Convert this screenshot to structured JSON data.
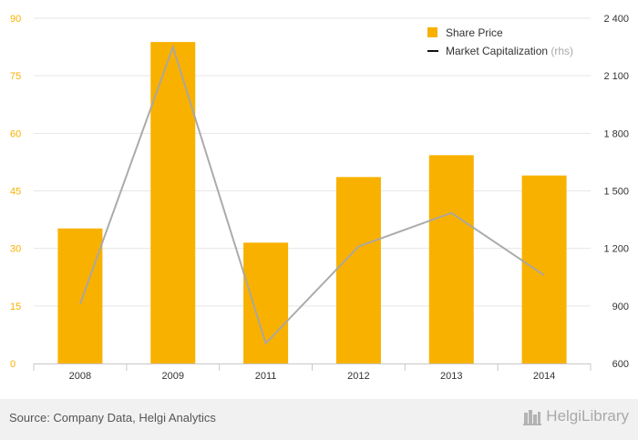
{
  "chart_data": {
    "type": "bar",
    "categories": [
      "2008",
      "2009",
      "2011",
      "2012",
      "2013",
      "2014"
    ],
    "series": [
      {
        "name": "Share Price",
        "type": "bar",
        "axis": "left",
        "color": "#f9b100",
        "values": [
          35.2,
          83.8,
          31.5,
          48.6,
          54.3,
          49.0
        ]
      },
      {
        "name": "Market Capitalization",
        "legend_suffix": "(rhs)",
        "type": "line",
        "axis": "right",
        "color": "#a6a6a6",
        "values": [
          910,
          2250,
          705,
          1210,
          1385,
          1060
        ]
      }
    ],
    "y_left": {
      "min": 0,
      "max": 90,
      "ticks": [
        0,
        15,
        30,
        45,
        60,
        75,
        90
      ],
      "tick_labels": [
        "0",
        "15",
        "30",
        "45",
        "60",
        "75",
        "90"
      ],
      "label_color": "#f9b100"
    },
    "y_right": {
      "min": 600,
      "max": 2400,
      "ticks": [
        600,
        900,
        1200,
        1500,
        1800,
        2100,
        2400
      ],
      "tick_labels": [
        "600",
        "900",
        "1 200",
        "1 500",
        "1 800",
        "2 100",
        "2 400"
      ],
      "label_color": "#333333"
    },
    "grid": true,
    "legend_position": "top-right"
  },
  "footer": {
    "source": "Source: Company Data, Helgi Analytics",
    "brand_name": "HelgiLibrary",
    "brand_icon": "helgi-logo-icon"
  }
}
